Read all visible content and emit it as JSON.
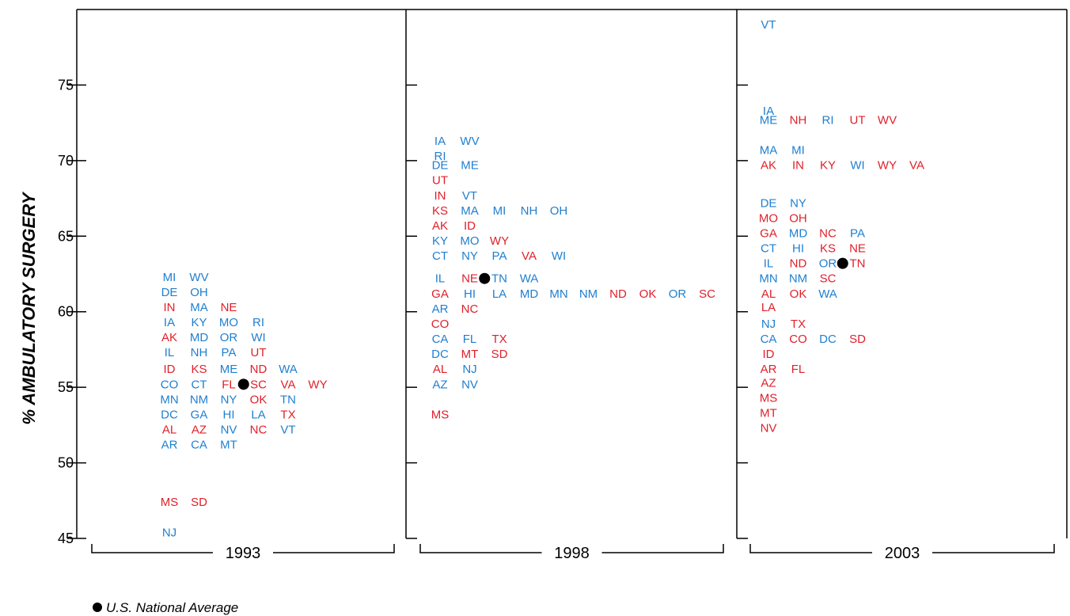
{
  "chart_data": {
    "type": "scatter",
    "ylabel": "% AMBULATORY SURGERY",
    "ylim": [
      45,
      80
    ],
    "yticks": [
      "45",
      "50",
      "55",
      "60",
      "65",
      "70",
      "75"
    ],
    "colors": {
      "blue": "#1f7fd0",
      "red": "#e0202a",
      "average": "#000000"
    },
    "legend": {
      "label": "U.S. National Average",
      "position": "bottom-left"
    },
    "periods": [
      {
        "label": "1993",
        "average": 55.2,
        "points": [
          {
            "state": "MI",
            "y": 62.3,
            "col": 0,
            "color": "blue"
          },
          {
            "state": "WV",
            "y": 62.3,
            "col": 1,
            "color": "blue"
          },
          {
            "state": "DE",
            "y": 61.3,
            "col": 0,
            "color": "blue"
          },
          {
            "state": "OH",
            "y": 61.3,
            "col": 1,
            "color": "blue"
          },
          {
            "state": "IN",
            "y": 60.3,
            "col": 0,
            "color": "red"
          },
          {
            "state": "MA",
            "y": 60.3,
            "col": 1,
            "color": "blue"
          },
          {
            "state": "NE",
            "y": 60.3,
            "col": 2,
            "color": "red"
          },
          {
            "state": "IA",
            "y": 59.3,
            "col": 0,
            "color": "blue"
          },
          {
            "state": "KY",
            "y": 59.3,
            "col": 1,
            "color": "blue"
          },
          {
            "state": "MO",
            "y": 59.3,
            "col": 2,
            "color": "blue"
          },
          {
            "state": "RI",
            "y": 59.3,
            "col": 3,
            "color": "blue"
          },
          {
            "state": "AK",
            "y": 58.3,
            "col": 0,
            "color": "red"
          },
          {
            "state": "MD",
            "y": 58.3,
            "col": 1,
            "color": "blue"
          },
          {
            "state": "OR",
            "y": 58.3,
            "col": 2,
            "color": "blue"
          },
          {
            "state": "WI",
            "y": 58.3,
            "col": 3,
            "color": "blue"
          },
          {
            "state": "IL",
            "y": 57.3,
            "col": 0,
            "color": "blue"
          },
          {
            "state": "NH",
            "y": 57.3,
            "col": 1,
            "color": "blue"
          },
          {
            "state": "PA",
            "y": 57.3,
            "col": 2,
            "color": "blue"
          },
          {
            "state": "UT",
            "y": 57.3,
            "col": 3,
            "color": "red"
          },
          {
            "state": "ID",
            "y": 56.2,
            "col": 0,
            "color": "red"
          },
          {
            "state": "KS",
            "y": 56.2,
            "col": 1,
            "color": "red"
          },
          {
            "state": "ME",
            "y": 56.2,
            "col": 2,
            "color": "blue"
          },
          {
            "state": "ND",
            "y": 56.2,
            "col": 3,
            "color": "red"
          },
          {
            "state": "WA",
            "y": 56.2,
            "col": 4,
            "color": "blue"
          },
          {
            "state": "CO",
            "y": 55.2,
            "col": 0,
            "color": "blue"
          },
          {
            "state": "CT",
            "y": 55.2,
            "col": 1,
            "color": "blue"
          },
          {
            "state": "FL",
            "y": 55.2,
            "col": 2,
            "color": "red"
          },
          {
            "state": "SC",
            "y": 55.2,
            "col": 3,
            "color": "red"
          },
          {
            "state": "VA",
            "y": 55.2,
            "col": 4,
            "color": "red"
          },
          {
            "state": "WY",
            "y": 55.2,
            "col": 5,
            "color": "red"
          },
          {
            "state": "MN",
            "y": 54.2,
            "col": 0,
            "color": "blue"
          },
          {
            "state": "NM",
            "y": 54.2,
            "col": 1,
            "color": "blue"
          },
          {
            "state": "NY",
            "y": 54.2,
            "col": 2,
            "color": "blue"
          },
          {
            "state": "OK",
            "y": 54.2,
            "col": 3,
            "color": "red"
          },
          {
            "state": "TN",
            "y": 54.2,
            "col": 4,
            "color": "blue"
          },
          {
            "state": "DC",
            "y": 53.2,
            "col": 0,
            "color": "blue"
          },
          {
            "state": "GA",
            "y": 53.2,
            "col": 1,
            "color": "blue"
          },
          {
            "state": "HI",
            "y": 53.2,
            "col": 2,
            "color": "blue"
          },
          {
            "state": "LA",
            "y": 53.2,
            "col": 3,
            "color": "blue"
          },
          {
            "state": "TX",
            "y": 53.2,
            "col": 4,
            "color": "red"
          },
          {
            "state": "AL",
            "y": 52.2,
            "col": 0,
            "color": "red"
          },
          {
            "state": "AZ",
            "y": 52.2,
            "col": 1,
            "color": "red"
          },
          {
            "state": "NV",
            "y": 52.2,
            "col": 2,
            "color": "blue"
          },
          {
            "state": "NC",
            "y": 52.2,
            "col": 3,
            "color": "red"
          },
          {
            "state": "VT",
            "y": 52.2,
            "col": 4,
            "color": "blue"
          },
          {
            "state": "AR",
            "y": 51.2,
            "col": 0,
            "color": "blue"
          },
          {
            "state": "CA",
            "y": 51.2,
            "col": 1,
            "color": "blue"
          },
          {
            "state": "MT",
            "y": 51.2,
            "col": 2,
            "color": "blue"
          },
          {
            "state": "MS",
            "y": 47.4,
            "col": 0,
            "color": "red"
          },
          {
            "state": "SD",
            "y": 47.4,
            "col": 1,
            "color": "red"
          },
          {
            "state": "NJ",
            "y": 45.4,
            "col": 0,
            "color": "blue"
          }
        ]
      },
      {
        "label": "1998",
        "average": 62.2,
        "points": [
          {
            "state": "IA",
            "y": 71.3,
            "col": 0,
            "color": "blue"
          },
          {
            "state": "WV",
            "y": 71.3,
            "col": 1,
            "color": "blue"
          },
          {
            "state": "RI",
            "y": 70.3,
            "col": 0,
            "color": "blue"
          },
          {
            "state": "DE",
            "y": 69.7,
            "col": 0,
            "color": "blue"
          },
          {
            "state": "ME",
            "y": 69.7,
            "col": 1,
            "color": "blue"
          },
          {
            "state": "UT",
            "y": 68.7,
            "col": 0,
            "color": "red"
          },
          {
            "state": "IN",
            "y": 67.7,
            "col": 0,
            "color": "red"
          },
          {
            "state": "VT",
            "y": 67.7,
            "col": 1,
            "color": "blue"
          },
          {
            "state": "KS",
            "y": 66.7,
            "col": 0,
            "color": "red"
          },
          {
            "state": "MA",
            "y": 66.7,
            "col": 1,
            "color": "blue"
          },
          {
            "state": "MI",
            "y": 66.7,
            "col": 2,
            "color": "blue"
          },
          {
            "state": "NH",
            "y": 66.7,
            "col": 3,
            "color": "blue"
          },
          {
            "state": "OH",
            "y": 66.7,
            "col": 4,
            "color": "blue"
          },
          {
            "state": "AK",
            "y": 65.7,
            "col": 0,
            "color": "red"
          },
          {
            "state": "ID",
            "y": 65.7,
            "col": 1,
            "color": "red"
          },
          {
            "state": "KY",
            "y": 64.7,
            "col": 0,
            "color": "blue"
          },
          {
            "state": "MO",
            "y": 64.7,
            "col": 1,
            "color": "blue"
          },
          {
            "state": "WY",
            "y": 64.7,
            "col": 2,
            "color": "red"
          },
          {
            "state": "CT",
            "y": 63.7,
            "col": 0,
            "color": "blue"
          },
          {
            "state": "NY",
            "y": 63.7,
            "col": 1,
            "color": "blue"
          },
          {
            "state": "PA",
            "y": 63.7,
            "col": 2,
            "color": "blue"
          },
          {
            "state": "VA",
            "y": 63.7,
            "col": 3,
            "color": "red"
          },
          {
            "state": "WI",
            "y": 63.7,
            "col": 4,
            "color": "blue"
          },
          {
            "state": "IL",
            "y": 62.2,
            "col": 0,
            "color": "blue"
          },
          {
            "state": "NE",
            "y": 62.2,
            "col": 1,
            "color": "red"
          },
          {
            "state": "TN",
            "y": 62.2,
            "col": 2,
            "color": "blue"
          },
          {
            "state": "WA",
            "y": 62.2,
            "col": 3,
            "color": "blue"
          },
          {
            "state": "GA",
            "y": 61.2,
            "col": 0,
            "color": "red"
          },
          {
            "state": "HI",
            "y": 61.2,
            "col": 1,
            "color": "blue"
          },
          {
            "state": "LA",
            "y": 61.2,
            "col": 2,
            "color": "blue"
          },
          {
            "state": "MD",
            "y": 61.2,
            "col": 3,
            "color": "blue"
          },
          {
            "state": "MN",
            "y": 61.2,
            "col": 4,
            "color": "blue"
          },
          {
            "state": "NM",
            "y": 61.2,
            "col": 5,
            "color": "blue"
          },
          {
            "state": "ND",
            "y": 61.2,
            "col": 6,
            "color": "red"
          },
          {
            "state": "OK",
            "y": 61.2,
            "col": 7,
            "color": "red"
          },
          {
            "state": "OR",
            "y": 61.2,
            "col": 8,
            "color": "blue"
          },
          {
            "state": "SC",
            "y": 61.2,
            "col": 9,
            "color": "red"
          },
          {
            "state": "AR",
            "y": 60.2,
            "col": 0,
            "color": "blue"
          },
          {
            "state": "NC",
            "y": 60.2,
            "col": 1,
            "color": "red"
          },
          {
            "state": "CO",
            "y": 59.2,
            "col": 0,
            "color": "red"
          },
          {
            "state": "CA",
            "y": 58.2,
            "col": 0,
            "color": "blue"
          },
          {
            "state": "FL",
            "y": 58.2,
            "col": 1,
            "color": "blue"
          },
          {
            "state": "TX",
            "y": 58.2,
            "col": 2,
            "color": "red"
          },
          {
            "state": "DC",
            "y": 57.2,
            "col": 0,
            "color": "blue"
          },
          {
            "state": "MT",
            "y": 57.2,
            "col": 1,
            "color": "red"
          },
          {
            "state": "SD",
            "y": 57.2,
            "col": 2,
            "color": "red"
          },
          {
            "state": "AL",
            "y": 56.2,
            "col": 0,
            "color": "red"
          },
          {
            "state": "NJ",
            "y": 56.2,
            "col": 1,
            "color": "blue"
          },
          {
            "state": "AZ",
            "y": 55.2,
            "col": 0,
            "color": "blue"
          },
          {
            "state": "NV",
            "y": 55.2,
            "col": 1,
            "color": "blue"
          },
          {
            "state": "MS",
            "y": 53.2,
            "col": 0,
            "color": "red"
          }
        ]
      },
      {
        "label": "2003",
        "average": 63.2,
        "points": [
          {
            "state": "VT",
            "y": 79.0,
            "col": 0,
            "color": "blue"
          },
          {
            "state": "IA",
            "y": 73.3,
            "col": 0,
            "color": "blue"
          },
          {
            "state": "ME",
            "y": 72.7,
            "col": 0,
            "color": "blue"
          },
          {
            "state": "NH",
            "y": 72.7,
            "col": 1,
            "color": "red"
          },
          {
            "state": "RI",
            "y": 72.7,
            "col": 2,
            "color": "blue"
          },
          {
            "state": "UT",
            "y": 72.7,
            "col": 3,
            "color": "red"
          },
          {
            "state": "WV",
            "y": 72.7,
            "col": 4,
            "color": "red"
          },
          {
            "state": "MA",
            "y": 70.7,
            "col": 0,
            "color": "blue"
          },
          {
            "state": "MI",
            "y": 70.7,
            "col": 1,
            "color": "blue"
          },
          {
            "state": "AK",
            "y": 69.7,
            "col": 0,
            "color": "red"
          },
          {
            "state": "IN",
            "y": 69.7,
            "col": 1,
            "color": "red"
          },
          {
            "state": "KY",
            "y": 69.7,
            "col": 2,
            "color": "red"
          },
          {
            "state": "WI",
            "y": 69.7,
            "col": 3,
            "color": "blue"
          },
          {
            "state": "WY",
            "y": 69.7,
            "col": 4,
            "color": "red"
          },
          {
            "state": "VA",
            "y": 69.7,
            "col": 5,
            "color": "red"
          },
          {
            "state": "DE",
            "y": 67.2,
            "col": 0,
            "color": "blue"
          },
          {
            "state": "NY",
            "y": 67.2,
            "col": 1,
            "color": "blue"
          },
          {
            "state": "MO",
            "y": 66.2,
            "col": 0,
            "color": "red"
          },
          {
            "state": "OH",
            "y": 66.2,
            "col": 1,
            "color": "red"
          },
          {
            "state": "GA",
            "y": 65.2,
            "col": 0,
            "color": "red"
          },
          {
            "state": "MD",
            "y": 65.2,
            "col": 1,
            "color": "blue"
          },
          {
            "state": "NC",
            "y": 65.2,
            "col": 2,
            "color": "red"
          },
          {
            "state": "PA",
            "y": 65.2,
            "col": 3,
            "color": "blue"
          },
          {
            "state": "CT",
            "y": 64.2,
            "col": 0,
            "color": "blue"
          },
          {
            "state": "HI",
            "y": 64.2,
            "col": 1,
            "color": "blue"
          },
          {
            "state": "KS",
            "y": 64.2,
            "col": 2,
            "color": "red"
          },
          {
            "state": "NE",
            "y": 64.2,
            "col": 3,
            "color": "red"
          },
          {
            "state": "IL",
            "y": 63.2,
            "col": 0,
            "color": "blue"
          },
          {
            "state": "ND",
            "y": 63.2,
            "col": 1,
            "color": "red"
          },
          {
            "state": "OR",
            "y": 63.2,
            "col": 2,
            "color": "blue"
          },
          {
            "state": "TN",
            "y": 63.2,
            "col": 3,
            "color": "red"
          },
          {
            "state": "MN",
            "y": 62.2,
            "col": 0,
            "color": "blue"
          },
          {
            "state": "NM",
            "y": 62.2,
            "col": 1,
            "color": "blue"
          },
          {
            "state": "SC",
            "y": 62.2,
            "col": 2,
            "color": "red"
          },
          {
            "state": "AL",
            "y": 61.2,
            "col": 0,
            "color": "red"
          },
          {
            "state": "OK",
            "y": 61.2,
            "col": 1,
            "color": "red"
          },
          {
            "state": "WA",
            "y": 61.2,
            "col": 2,
            "color": "blue"
          },
          {
            "state": "LA",
            "y": 60.3,
            "col": 0,
            "color": "red"
          },
          {
            "state": "NJ",
            "y": 59.2,
            "col": 0,
            "color": "blue"
          },
          {
            "state": "TX",
            "y": 59.2,
            "col": 1,
            "color": "red"
          },
          {
            "state": "CA",
            "y": 58.2,
            "col": 0,
            "color": "blue"
          },
          {
            "state": "CO",
            "y": 58.2,
            "col": 1,
            "color": "red"
          },
          {
            "state": "DC",
            "y": 58.2,
            "col": 2,
            "color": "blue"
          },
          {
            "state": "SD",
            "y": 58.2,
            "col": 3,
            "color": "red"
          },
          {
            "state": "ID",
            "y": 57.2,
            "col": 0,
            "color": "red"
          },
          {
            "state": "AR",
            "y": 56.2,
            "col": 0,
            "color": "red"
          },
          {
            "state": "FL",
            "y": 56.2,
            "col": 1,
            "color": "red"
          },
          {
            "state": "AZ",
            "y": 55.3,
            "col": 0,
            "color": "red"
          },
          {
            "state": "MS",
            "y": 54.3,
            "col": 0,
            "color": "red"
          },
          {
            "state": "MT",
            "y": 53.3,
            "col": 0,
            "color": "red"
          },
          {
            "state": "NV",
            "y": 52.3,
            "col": 0,
            "color": "red"
          }
        ]
      }
    ]
  }
}
